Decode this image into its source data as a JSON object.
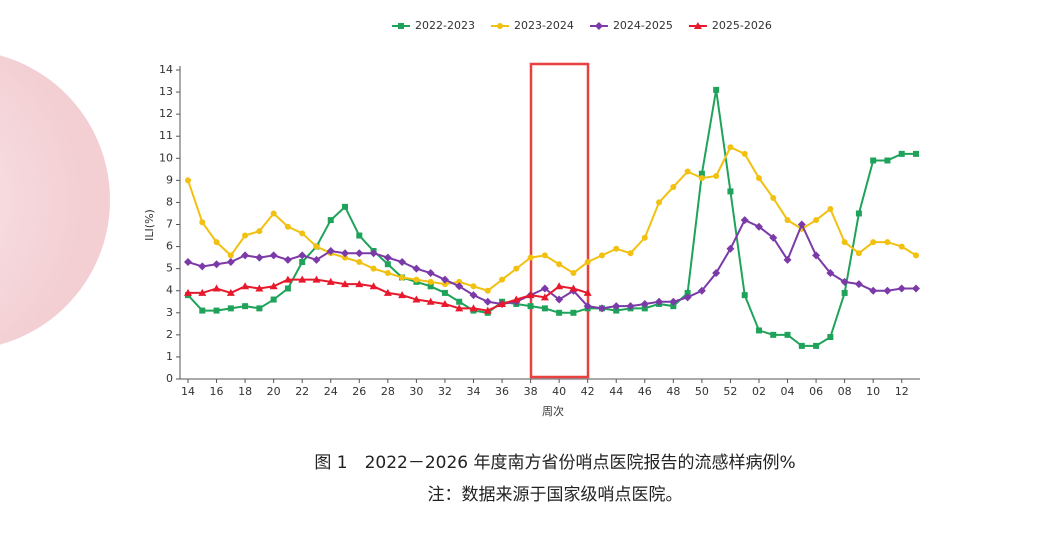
{
  "chart_data": {
    "type": "line",
    "caption": "图 1　2022－2026 年度南方省份哨点医院报告的流感样病例%",
    "note": "注：数据来源于国家级哨点医院。",
    "y_label": "ILI(%)",
    "x_label": "周次",
    "categories": [
      "14",
      null,
      "16",
      null,
      "18",
      null,
      "20",
      null,
      "22",
      null,
      "24",
      null,
      "26",
      null,
      "28",
      null,
      "30",
      null,
      "32",
      null,
      "34",
      null,
      "36",
      null,
      "38",
      null,
      "40",
      null,
      "42",
      null,
      "44",
      null,
      "46",
      null,
      "48",
      null,
      "50",
      null,
      "52",
      null,
      "02",
      null,
      "04",
      null,
      "06",
      null,
      "08",
      null,
      "10",
      null,
      "12",
      null
    ],
    "ylim": [
      0,
      14
    ],
    "yticks": [
      0,
      1,
      2,
      3,
      4,
      5,
      6,
      7,
      8,
      9,
      10,
      11,
      12,
      13,
      14
    ],
    "series": [
      {
        "name": "2022-2023",
        "color": "#1fa35a",
        "marker": "square",
        "values": [
          3.8,
          3.1,
          3.1,
          3.2,
          3.3,
          3.2,
          3.6,
          4.1,
          5.3,
          6.0,
          7.2,
          7.8,
          6.5,
          5.8,
          5.2,
          4.6,
          4.4,
          4.2,
          3.9,
          3.5,
          3.1,
          3.0,
          3.5,
          3.4,
          3.3,
          3.2,
          3.0,
          3.0,
          3.2,
          3.2,
          3.1,
          3.2,
          3.2,
          3.4,
          3.3,
          3.9,
          9.3,
          13.1,
          8.5,
          3.8,
          2.2,
          2.0,
          2.0,
          1.5,
          1.5,
          1.9,
          3.9,
          7.5,
          9.9,
          9.9,
          10.2,
          10.2
        ]
      },
      {
        "name": "2023-2024",
        "color": "#f2c00f",
        "marker": "circle",
        "values": [
          9.0,
          7.1,
          6.2,
          5.6,
          6.5,
          6.7,
          7.5,
          6.9,
          6.6,
          6.0,
          5.7,
          5.5,
          5.3,
          5.0,
          4.8,
          4.6,
          4.5,
          4.4,
          4.3,
          4.4,
          4.2,
          4.0,
          4.5,
          5.0,
          5.5,
          5.6,
          5.2,
          4.8,
          5.3,
          5.6,
          5.9,
          5.7,
          6.4,
          8.0,
          8.7,
          9.4,
          9.1,
          9.2,
          10.5,
          10.2,
          9.1,
          8.2,
          7.2,
          6.8,
          7.2,
          7.7,
          6.2,
          5.7,
          6.2,
          6.2,
          6.0,
          5.6
        ]
      },
      {
        "name": "2024-2025",
        "color": "#7b3aa8",
        "marker": "diamond",
        "values": [
          5.3,
          5.1,
          5.2,
          5.3,
          5.6,
          5.5,
          5.6,
          5.4,
          5.6,
          5.4,
          5.8,
          5.7,
          5.7,
          5.7,
          5.5,
          5.3,
          5.0,
          4.8,
          4.5,
          4.2,
          3.8,
          3.5,
          3.4,
          3.5,
          3.8,
          4.1,
          3.6,
          4.0,
          3.3,
          3.2,
          3.3,
          3.3,
          3.4,
          3.5,
          3.5,
          3.7,
          4.0,
          4.8,
          5.9,
          7.2,
          6.9,
          6.4,
          5.4,
          7.0,
          5.6,
          4.8,
          4.4,
          4.3,
          4.0,
          4.0,
          4.1,
          4.1
        ]
      },
      {
        "name": "2025-2026",
        "color": "#e8192c",
        "marker": "triangle",
        "values": [
          3.9,
          3.9,
          4.1,
          3.9,
          4.2,
          4.1,
          4.2,
          4.5,
          4.5,
          4.5,
          4.4,
          4.3,
          4.3,
          4.2,
          3.9,
          3.8,
          3.6,
          3.5,
          3.4,
          3.2,
          3.2,
          3.1,
          3.4,
          3.6,
          3.8,
          3.7,
          4.2,
          4.1,
          3.9,
          null,
          null,
          null,
          null,
          null,
          null,
          null,
          null,
          null,
          null,
          null,
          null,
          null,
          null,
          null,
          null,
          null,
          null,
          null,
          null,
          null,
          null,
          null
        ]
      }
    ]
  }
}
